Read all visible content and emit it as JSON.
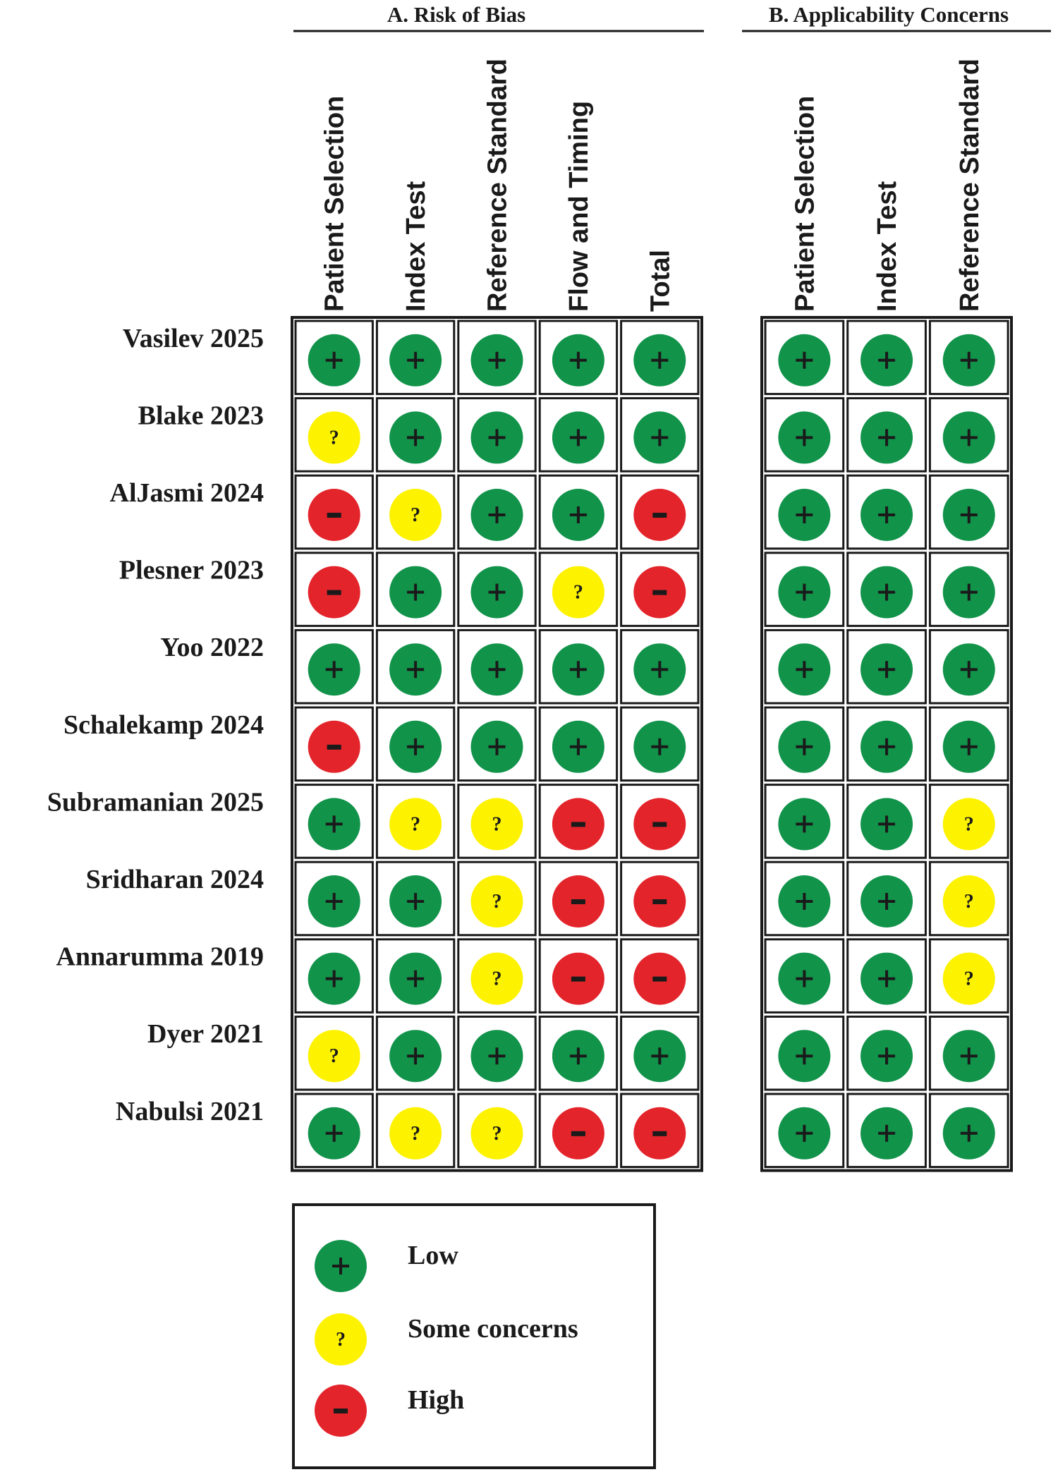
{
  "chart_data": {
    "type": "table",
    "sections": [
      {
        "title": "A. Risk of Bias",
        "columns": [
          "Patient Selection",
          "Index Test",
          "Reference Standard",
          "Flow and Timing",
          "Total"
        ]
      },
      {
        "title": "B. Applicability Concerns",
        "columns": [
          "Patient Selection",
          "Index Test",
          "Reference Standard"
        ]
      }
    ],
    "studies": [
      {
        "name": "Vasilev 2025",
        "risk_of_bias": [
          "low",
          "low",
          "low",
          "low",
          "low"
        ],
        "applicability": [
          "low",
          "low",
          "low"
        ]
      },
      {
        "name": "Blake 2023",
        "risk_of_bias": [
          "some",
          "low",
          "low",
          "low",
          "low"
        ],
        "applicability": [
          "low",
          "low",
          "low"
        ]
      },
      {
        "name": "AlJasmi 2024",
        "risk_of_bias": [
          "high",
          "some",
          "low",
          "low",
          "high"
        ],
        "applicability": [
          "low",
          "low",
          "low"
        ]
      },
      {
        "name": "Plesner 2023",
        "risk_of_bias": [
          "high",
          "low",
          "low",
          "some",
          "high"
        ],
        "applicability": [
          "low",
          "low",
          "low"
        ]
      },
      {
        "name": "Yoo 2022",
        "risk_of_bias": [
          "low",
          "low",
          "low",
          "low",
          "low"
        ],
        "applicability": [
          "low",
          "low",
          "low"
        ]
      },
      {
        "name": "Schalekamp 2024",
        "risk_of_bias": [
          "high",
          "low",
          "low",
          "low",
          "low"
        ],
        "applicability": [
          "low",
          "low",
          "low"
        ]
      },
      {
        "name": "Subramanian 2025",
        "risk_of_bias": [
          "low",
          "some",
          "some",
          "high",
          "high"
        ],
        "applicability": [
          "low",
          "low",
          "some"
        ]
      },
      {
        "name": "Sridharan 2024",
        "risk_of_bias": [
          "low",
          "low",
          "some",
          "high",
          "high"
        ],
        "applicability": [
          "low",
          "low",
          "some"
        ]
      },
      {
        "name": "Annarumma 2019",
        "risk_of_bias": [
          "low",
          "low",
          "some",
          "high",
          "high"
        ],
        "applicability": [
          "low",
          "low",
          "some"
        ]
      },
      {
        "name": "Dyer 2021",
        "risk_of_bias": [
          "some",
          "low",
          "low",
          "low",
          "low"
        ],
        "applicability": [
          "low",
          "low",
          "low"
        ]
      },
      {
        "name": "Nabulsi 2021",
        "risk_of_bias": [
          "low",
          "some",
          "some",
          "high",
          "high"
        ],
        "applicability": [
          "low",
          "low",
          "low"
        ]
      }
    ],
    "legend": [
      {
        "key": "low",
        "label": "Low"
      },
      {
        "key": "some",
        "label": "Some concerns"
      },
      {
        "key": "high",
        "label": "High"
      }
    ],
    "colors": {
      "low": "#11934a",
      "some": "#fdf200",
      "high": "#e3242b"
    }
  }
}
